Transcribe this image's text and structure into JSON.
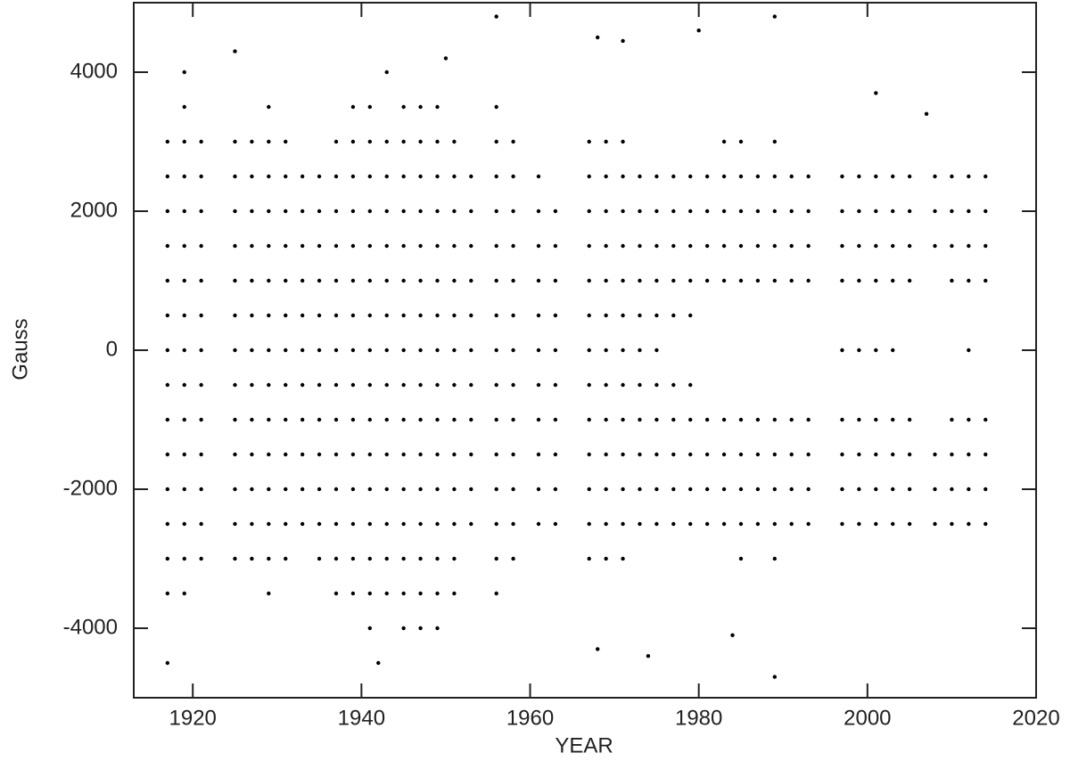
{
  "chart_data": {
    "type": "scatter",
    "x_label": "YEAR",
    "y_label": "Gauss",
    "color": "#000000",
    "xlim": [
      1913,
      2020
    ],
    "xticks": [
      1920,
      1940,
      1960,
      1980,
      2000,
      2020
    ],
    "ylim": [
      -5000,
      5000
    ],
    "yticks": [
      -4000,
      -2000,
      0,
      2000,
      4000
    ],
    "x": [
      1917,
      1917,
      1917,
      1917,
      1917,
      1917,
      1917,
      1917,
      1917,
      1917,
      1917,
      1917,
      1917,
      1917,
      1919,
      1919,
      1919,
      1919,
      1919,
      1919,
      1919,
      1919,
      1919,
      1919,
      1919,
      1919,
      1919,
      1919,
      1919,
      1919,
      1921,
      1921,
      1921,
      1921,
      1921,
      1921,
      1921,
      1921,
      1921,
      1921,
      1921,
      1921,
      1921,
      1925,
      1925,
      1925,
      1925,
      1925,
      1925,
      1925,
      1925,
      1925,
      1925,
      1925,
      1925,
      1925,
      1925,
      1927,
      1927,
      1927,
      1927,
      1927,
      1927,
      1927,
      1927,
      1927,
      1927,
      1927,
      1927,
      1927,
      1929,
      1929,
      1929,
      1929,
      1929,
      1929,
      1929,
      1929,
      1929,
      1929,
      1929,
      1929,
      1929,
      1929,
      1929,
      1931,
      1931,
      1931,
      1931,
      1931,
      1931,
      1931,
      1931,
      1931,
      1931,
      1931,
      1931,
      1931,
      1933,
      1933,
      1933,
      1933,
      1933,
      1933,
      1933,
      1933,
      1933,
      1933,
      1933,
      1935,
      1935,
      1935,
      1935,
      1935,
      1935,
      1935,
      1935,
      1935,
      1935,
      1935,
      1935,
      1937,
      1937,
      1937,
      1937,
      1937,
      1937,
      1937,
      1937,
      1937,
      1937,
      1937,
      1937,
      1937,
      1937,
      1939,
      1939,
      1939,
      1939,
      1939,
      1939,
      1939,
      1939,
      1939,
      1939,
      1939,
      1939,
      1939,
      1939,
      1939,
      1941,
      1941,
      1941,
      1941,
      1941,
      1941,
      1941,
      1941,
      1941,
      1941,
      1941,
      1941,
      1941,
      1941,
      1941,
      1941,
      1943,
      1943,
      1943,
      1943,
      1943,
      1943,
      1943,
      1943,
      1943,
      1943,
      1943,
      1943,
      1943,
      1943,
      1943,
      1945,
      1945,
      1945,
      1945,
      1945,
      1945,
      1945,
      1945,
      1945,
      1945,
      1945,
      1945,
      1945,
      1945,
      1945,
      1945,
      1947,
      1947,
      1947,
      1947,
      1947,
      1947,
      1947,
      1947,
      1947,
      1947,
      1947,
      1947,
      1947,
      1947,
      1947,
      1947,
      1949,
      1949,
      1949,
      1949,
      1949,
      1949,
      1949,
      1949,
      1949,
      1949,
      1949,
      1949,
      1949,
      1949,
      1949,
      1949,
      1951,
      1951,
      1951,
      1951,
      1951,
      1951,
      1951,
      1951,
      1951,
      1951,
      1951,
      1951,
      1951,
      1951,
      1953,
      1953,
      1953,
      1953,
      1953,
      1953,
      1953,
      1953,
      1953,
      1953,
      1953,
      1956,
      1956,
      1956,
      1956,
      1956,
      1956,
      1956,
      1956,
      1956,
      1956,
      1956,
      1956,
      1956,
      1956,
      1956,
      1958,
      1958,
      1958,
      1958,
      1958,
      1958,
      1958,
      1958,
      1958,
      1958,
      1958,
      1958,
      1958,
      1961,
      1961,
      1961,
      1961,
      1961,
      1961,
      1961,
      1961,
      1961,
      1961,
      1961,
      1963,
      1963,
      1963,
      1963,
      1963,
      1963,
      1963,
      1963,
      1963,
      1963,
      1967,
      1967,
      1967,
      1967,
      1967,
      1967,
      1967,
      1967,
      1967,
      1967,
      1967,
      1967,
      1967,
      1969,
      1969,
      1969,
      1969,
      1969,
      1969,
      1969,
      1969,
      1969,
      1969,
      1969,
      1969,
      1969,
      1971,
      1971,
      1971,
      1971,
      1971,
      1971,
      1971,
      1971,
      1971,
      1971,
      1971,
      1971,
      1971,
      1973,
      1973,
      1973,
      1973,
      1973,
      1973,
      1973,
      1973,
      1973,
      1973,
      1973,
      1975,
      1975,
      1975,
      1975,
      1975,
      1975,
      1975,
      1975,
      1975,
      1975,
      1975,
      1977,
      1977,
      1977,
      1977,
      1977,
      1977,
      1977,
      1977,
      1977,
      1977,
      1979,
      1979,
      1979,
      1979,
      1979,
      1979,
      1979,
      1979,
      1979,
      1979,
      1981,
      1981,
      1981,
      1981,
      1981,
      1981,
      1981,
      1981,
      1983,
      1983,
      1983,
      1983,
      1983,
      1983,
      1983,
      1983,
      1983,
      1985,
      1985,
      1985,
      1985,
      1985,
      1985,
      1985,
      1985,
      1985,
      1985,
      1987,
      1987,
      1987,
      1987,
      1987,
      1987,
      1987,
      1987,
      1989,
      1989,
      1989,
      1989,
      1989,
      1989,
      1989,
      1989,
      1989,
      1989,
      1991,
      1991,
      1991,
      1991,
      1991,
      1991,
      1991,
      1991,
      1993,
      1993,
      1993,
      1993,
      1993,
      1993,
      1993,
      1993,
      1997,
      1997,
      1997,
      1997,
      1997,
      1997,
      1997,
      1997,
      1997,
      1999,
      1999,
      1999,
      1999,
      1999,
      1999,
      1999,
      1999,
      1999,
      2001,
      2001,
      2001,
      2001,
      2001,
      2001,
      2001,
      2001,
      2001,
      2003,
      2003,
      2003,
      2003,
      2003,
      2003,
      2003,
      2003,
      2003,
      2005,
      2005,
      2005,
      2005,
      2005,
      2005,
      2005,
      2005,
      2008,
      2008,
      2008,
      2008,
      2008,
      2008,
      2010,
      2010,
      2010,
      2010,
      2010,
      2010,
      2010,
      2010,
      2012,
      2012,
      2012,
      2012,
      2012,
      2012,
      2012,
      2012,
      2012,
      2014,
      2014,
      2014,
      2014,
      2014,
      2014,
      2014,
      2014,
      1917,
      1956,
      1968,
      1971,
      1968,
      1974,
      1980,
      1984,
      1989,
      1989,
      2001,
      2007,
      1942,
      1950
    ],
    "values": [
      3000,
      2500,
      2000,
      1500,
      1000,
      500,
      0,
      -500,
      -1000,
      -1500,
      -2000,
      -2500,
      -3000,
      -3500,
      4000,
      3500,
      3000,
      2500,
      2000,
      1500,
      1000,
      500,
      0,
      -500,
      -1000,
      -1500,
      -2000,
      -2500,
      -3000,
      -3500,
      3000,
      2500,
      2000,
      1500,
      1000,
      500,
      0,
      -500,
      -1000,
      -1500,
      -2000,
      -2500,
      -3000,
      4300,
      3000,
      2500,
      2000,
      1500,
      1000,
      500,
      0,
      -500,
      -1000,
      -1500,
      -2000,
      -2500,
      -3000,
      3000,
      2500,
      2000,
      1500,
      1000,
      500,
      0,
      -500,
      -1000,
      -1500,
      -2000,
      -2500,
      -3000,
      3500,
      3000,
      2500,
      2000,
      1500,
      1000,
      500,
      0,
      -500,
      -1000,
      -1500,
      -2000,
      -2500,
      -3000,
      -3500,
      3000,
      2500,
      2000,
      1500,
      1000,
      500,
      0,
      -500,
      -1000,
      -1500,
      -2000,
      -2500,
      -3000,
      2500,
      2000,
      1500,
      1000,
      500,
      0,
      -500,
      -1000,
      -1500,
      -2000,
      -2500,
      2500,
      2000,
      1500,
      1000,
      500,
      0,
      -500,
      -1000,
      -1500,
      -2000,
      -2500,
      -3000,
      3000,
      2500,
      2000,
      1500,
      1000,
      500,
      0,
      -500,
      -1000,
      -1500,
      -2000,
      -2500,
      -3000,
      -3500,
      3500,
      3000,
      2500,
      2000,
      1500,
      1000,
      500,
      0,
      -500,
      -1000,
      -1500,
      -2000,
      -2500,
      -3000,
      -3500,
      3500,
      3000,
      2500,
      2000,
      1500,
      1000,
      500,
      0,
      -500,
      -1000,
      -1500,
      -2000,
      -2500,
      -3000,
      -3500,
      -4000,
      4000,
      3000,
      2500,
      2000,
      1500,
      1000,
      500,
      0,
      -500,
      -1000,
      -1500,
      -2000,
      -2500,
      -3000,
      -3500,
      3500,
      3000,
      2500,
      2000,
      1500,
      1000,
      500,
      0,
      -500,
      -1000,
      -1500,
      -2000,
      -2500,
      -3000,
      -3500,
      -4000,
      3500,
      3000,
      2500,
      2000,
      1500,
      1000,
      500,
      0,
      -500,
      -1000,
      -1500,
      -2000,
      -2500,
      -3000,
      -3500,
      -4000,
      3500,
      3000,
      2500,
      2000,
      1500,
      1000,
      500,
      0,
      -500,
      -1000,
      -1500,
      -2000,
      -2500,
      -3000,
      -3500,
      -4000,
      3000,
      2500,
      2000,
      1500,
      1000,
      500,
      0,
      -500,
      -1000,
      -1500,
      -2000,
      -2500,
      -3000,
      -3500,
      2500,
      2000,
      1500,
      1000,
      500,
      0,
      -500,
      -1000,
      -1500,
      -2000,
      -2500,
      3500,
      3000,
      2500,
      2000,
      1500,
      1000,
      500,
      0,
      -500,
      -1000,
      -1500,
      -2000,
      -2500,
      -3000,
      -3500,
      3000,
      2500,
      2000,
      1500,
      1000,
      500,
      0,
      -500,
      -1000,
      -1500,
      -2000,
      -2500,
      -3000,
      2500,
      2000,
      1500,
      1000,
      500,
      0,
      -500,
      -1000,
      -1500,
      -2000,
      -2500,
      2000,
      1500,
      1000,
      500,
      0,
      -500,
      -1000,
      -1500,
      -2000,
      -2500,
      3000,
      2500,
      2000,
      1500,
      1000,
      500,
      0,
      -500,
      -1000,
      -1500,
      -2000,
      -2500,
      -3000,
      3000,
      2500,
      2000,
      1500,
      1000,
      500,
      0,
      -500,
      -1000,
      -1500,
      -2000,
      -2500,
      -3000,
      3000,
      2500,
      2000,
      1500,
      1000,
      500,
      0,
      -500,
      -1000,
      -1500,
      -2000,
      -2500,
      -3000,
      2500,
      2000,
      1500,
      1000,
      500,
      0,
      -500,
      -1000,
      -1500,
      -2000,
      -2500,
      2500,
      2000,
      1500,
      1000,
      500,
      0,
      -500,
      -1000,
      -1500,
      -2000,
      -2500,
      2500,
      2000,
      1500,
      1000,
      500,
      -500,
      -1000,
      -1500,
      -2000,
      -2500,
      2500,
      2000,
      1500,
      1000,
      500,
      -500,
      -1000,
      -1500,
      -2000,
      -2500,
      2500,
      2000,
      1500,
      1000,
      -1000,
      -1500,
      -2000,
      -2500,
      3000,
      2500,
      2000,
      1500,
      1000,
      -1000,
      -1500,
      -2000,
      -2500,
      3000,
      2500,
      2000,
      1500,
      1000,
      -1000,
      -1500,
      -2000,
      -2500,
      -3000,
      2500,
      2000,
      1500,
      1000,
      -1000,
      -1500,
      -2000,
      -2500,
      3000,
      2500,
      2000,
      1500,
      1000,
      -1000,
      -1500,
      -2000,
      -2500,
      -3000,
      2500,
      2000,
      1500,
      1000,
      -1000,
      -1500,
      -2000,
      -2500,
      2500,
      2000,
      1500,
      1000,
      -1000,
      -1500,
      -2000,
      -2500,
      2500,
      2000,
      1500,
      1000,
      0,
      -1000,
      -1500,
      -2000,
      -2500,
      2500,
      2000,
      1500,
      1000,
      0,
      -1000,
      -1500,
      -2000,
      -2500,
      2500,
      2000,
      1500,
      1000,
      0,
      -1000,
      -1500,
      -2000,
      -2500,
      2500,
      2000,
      1500,
      1000,
      0,
      -1000,
      -1500,
      -2000,
      -2500,
      2500,
      2000,
      1500,
      1000,
      -1000,
      -1500,
      -2000,
      -2500,
      2500,
      2000,
      1500,
      -1500,
      -2000,
      -2500,
      2500,
      2000,
      1500,
      1000,
      -1000,
      -1500,
      -2000,
      -2500,
      2500,
      2000,
      1500,
      1000,
      0,
      -1000,
      -1500,
      -2000,
      -2500,
      2500,
      2000,
      1500,
      1000,
      -1000,
      -1500,
      -2000,
      -2500,
      -4500,
      4800,
      4500,
      4450,
      -4300,
      -4400,
      4600,
      -4100,
      4800,
      -4700,
      3700,
      3400,
      -4500,
      4200
    ]
  }
}
